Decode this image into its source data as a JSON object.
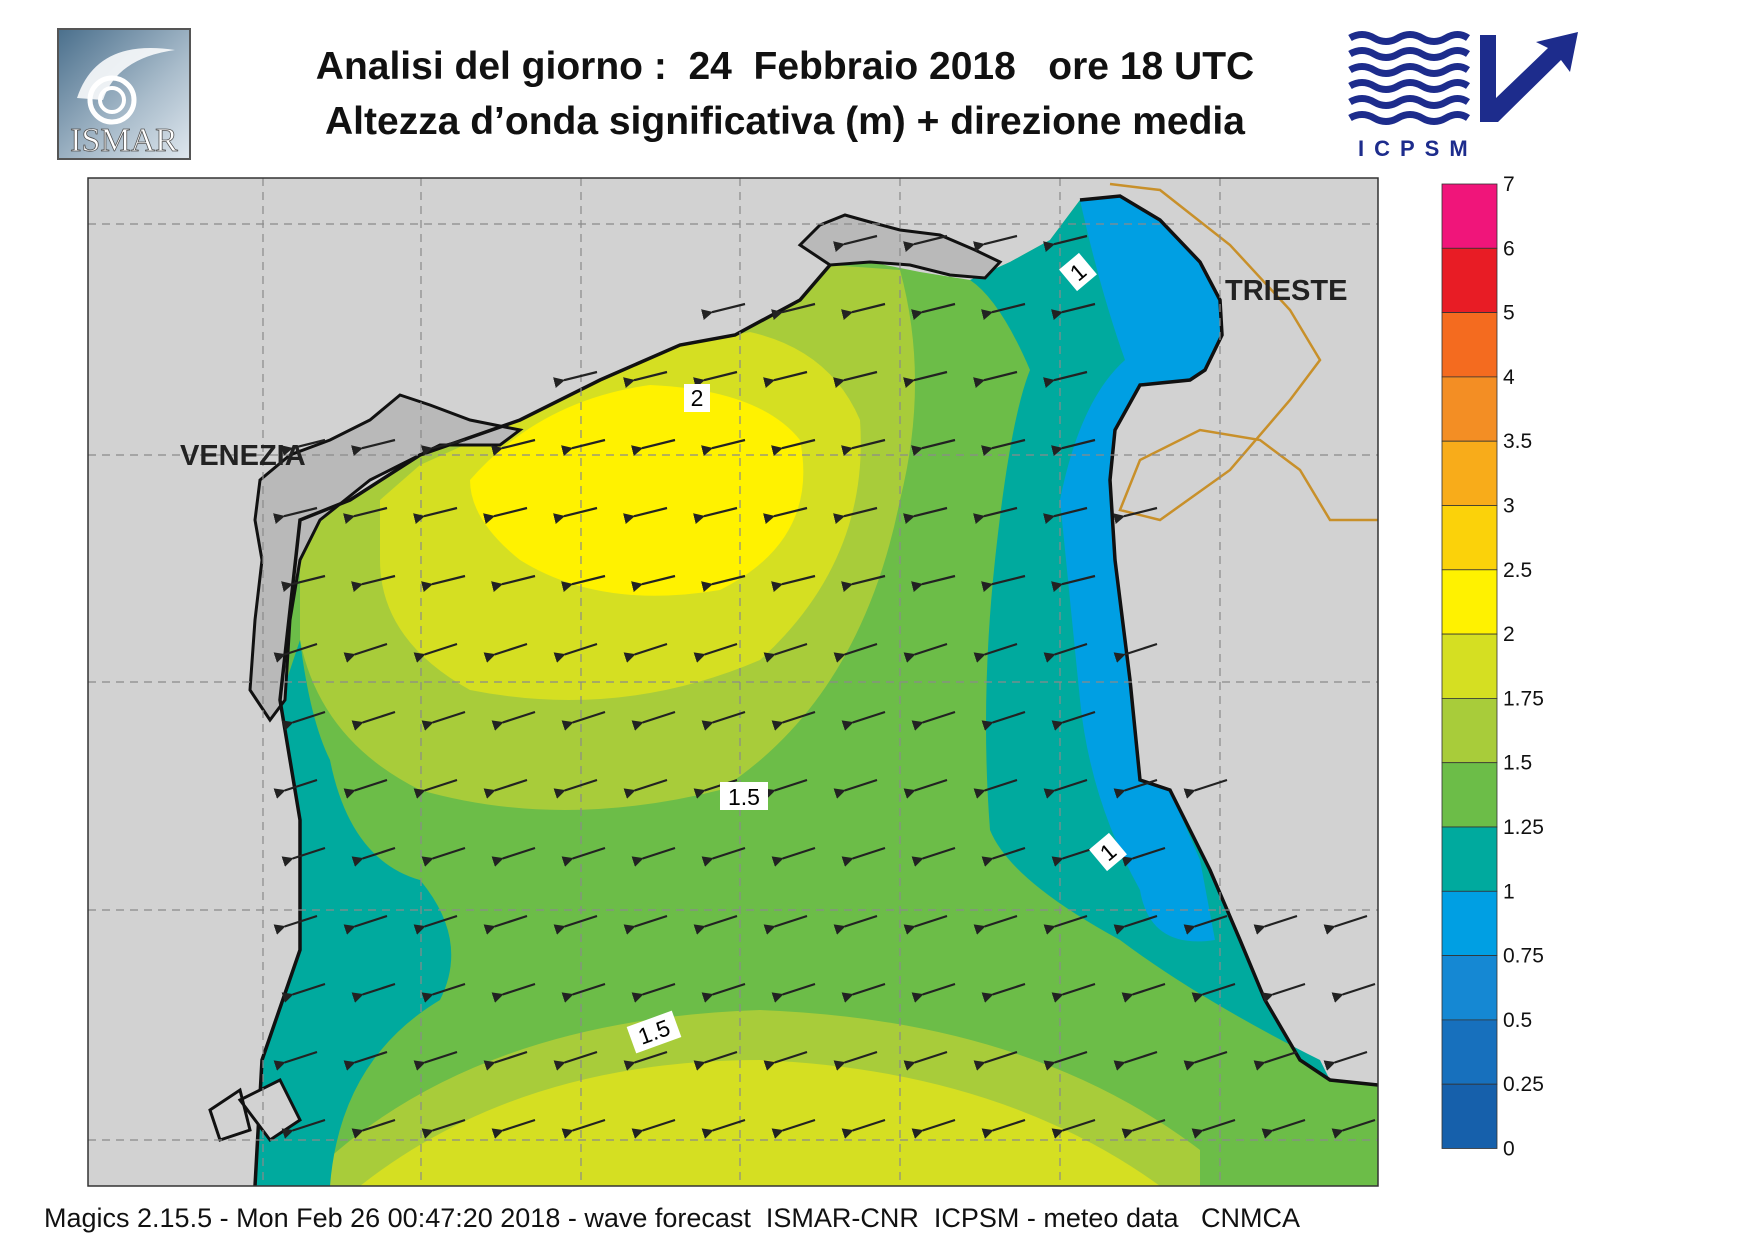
{
  "title_line1": "Analisi del giorno :  24  Febbraio 2018   ore 18 UTC",
  "title_line2": "Altezza d’onda significativa (m) + direzione media",
  "logo_left_text": "ISMAR",
  "logo_right_text": "ICPSM",
  "cities": {
    "venezia": "VENEZIA",
    "trieste": "TRIESTE"
  },
  "contour_labels": [
    "2",
    "1",
    "1.5",
    "1",
    "1.5"
  ],
  "legend": {
    "labels": [
      "7",
      "6",
      "5",
      "4",
      "3.5",
      "3",
      "2.5",
      "2",
      "1.75",
      "1.5",
      "1.25",
      "1",
      "0.75",
      "0.5",
      "0.25",
      "0"
    ],
    "colors": [
      "#f0157a",
      "#e81c25",
      "#f46b1f",
      "#f38e24",
      "#f8ac1a",
      "#fbd20a",
      "#fff200",
      "#d5df22",
      "#a8cc3a",
      "#6cbd48",
      "#00aa9e",
      "#009fe3",
      "#1588d3",
      "#1770bd",
      "#1660ab"
    ]
  },
  "map_colors": {
    "land": "#d2d2d2",
    "venice_lagoon": "#b9b9b9",
    "border": "#c8902a",
    "arrow": "#222222"
  },
  "footer": "Magics 2.15.5 - Mon Feb 26 00:47:20 2018 - wave forecast  ISMAR-CNR  ICPSM - meteo data   CNMCA"
}
